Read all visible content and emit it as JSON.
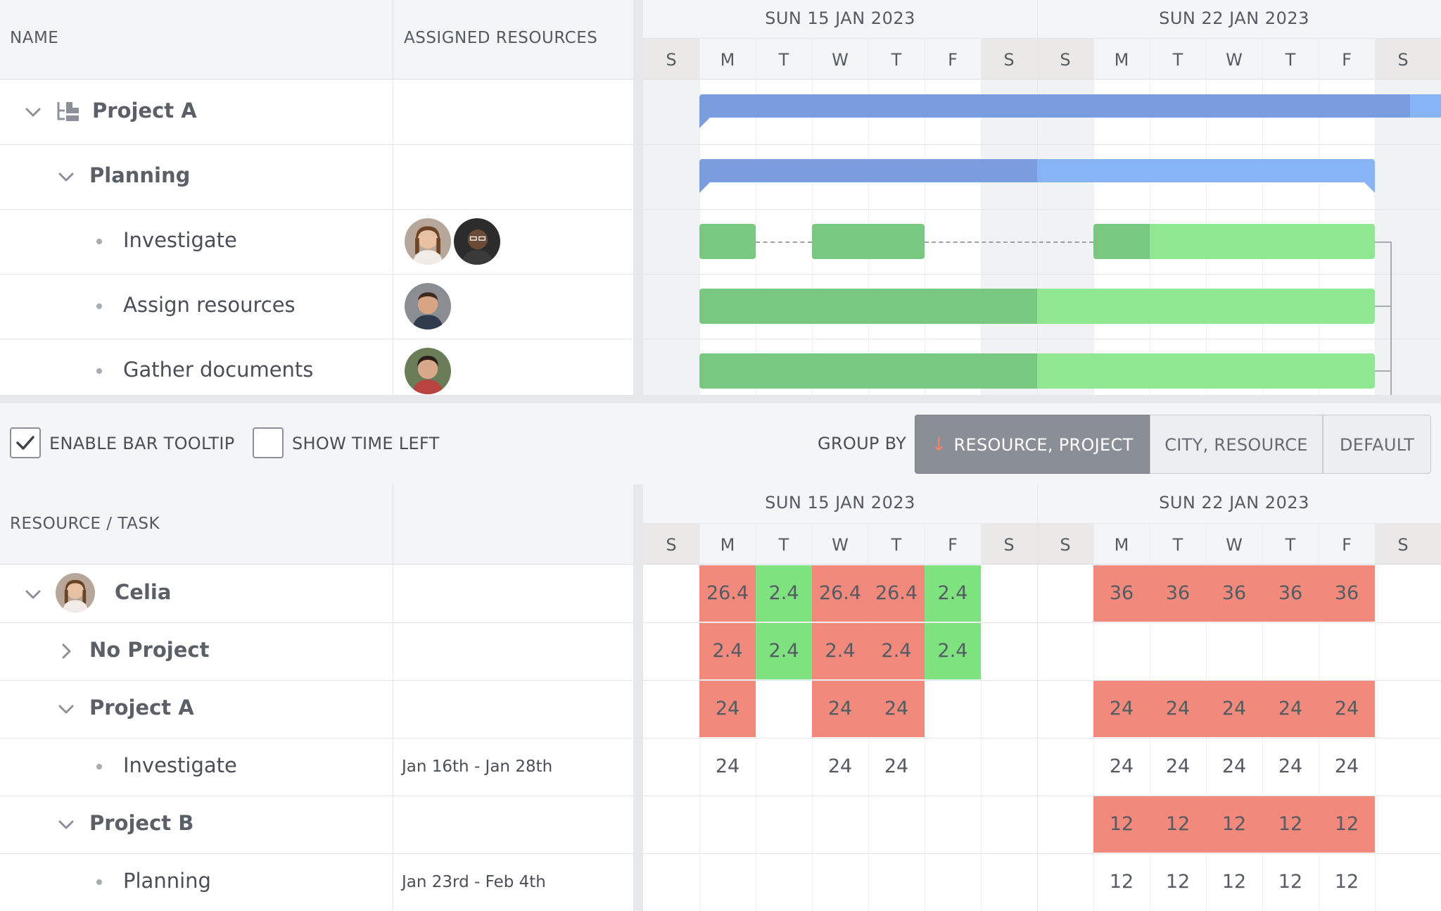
{
  "top_grid": {
    "headers": {
      "name": "NAME",
      "assigned": "ASSIGNED RESOURCES"
    },
    "weeks": [
      "SUN 15 JAN 2023",
      "SUN 22 JAN 2023"
    ],
    "days": [
      "S",
      "M",
      "T",
      "W",
      "T",
      "F",
      "S",
      "S",
      "M",
      "T",
      "W",
      "T",
      "F",
      "S"
    ],
    "rows": [
      {
        "label": "Project A"
      },
      {
        "label": "Planning"
      },
      {
        "label": "Investigate"
      },
      {
        "label": "Assign resources"
      },
      {
        "label": "Gather documents"
      }
    ]
  },
  "toolbar": {
    "enable_tooltip": "ENABLE BAR TOOLTIP",
    "show_time_left": "SHOW TIME LEFT",
    "group_by": "GROUP BY",
    "btn_resource_project": "RESOURCE, PROJECT",
    "btn_city_resource": "CITY, RESOURCE",
    "btn_default": "DEFAULT"
  },
  "bottom_grid": {
    "headers": {
      "resource_task": "RESOURCE / TASK"
    },
    "weeks": [
      "SUN 15 JAN 2023",
      "SUN 22 JAN 2023"
    ],
    "days": [
      "S",
      "M",
      "T",
      "W",
      "T",
      "F",
      "S",
      "S",
      "M",
      "T",
      "W",
      "T",
      "F",
      "S"
    ],
    "rows": [
      {
        "label": "Celia",
        "dates": "",
        "cells": [
          "",
          "26.4",
          "2.4",
          "26.4",
          "26.4",
          "2.4",
          "",
          "",
          "36",
          "36",
          "36",
          "36",
          "36",
          ""
        ],
        "styles": [
          "",
          "red",
          "green",
          "red",
          "red",
          "green",
          "",
          "",
          "red",
          "red",
          "red",
          "red",
          "red",
          ""
        ]
      },
      {
        "label": "No Project",
        "dates": "",
        "cells": [
          "",
          "2.4",
          "2.4",
          "2.4",
          "2.4",
          "2.4",
          "",
          "",
          "",
          "",
          "",
          "",
          "",
          ""
        ],
        "styles": [
          "",
          "red",
          "green",
          "red",
          "red",
          "green",
          "",
          "",
          "",
          "",
          "",
          "",
          "",
          ""
        ]
      },
      {
        "label": "Project A",
        "dates": "",
        "cells": [
          "",
          "24",
          "",
          "24",
          "24",
          "",
          "",
          "",
          "24",
          "24",
          "24",
          "24",
          "24",
          ""
        ],
        "styles": [
          "",
          "red",
          "",
          "red",
          "red",
          "",
          "",
          "",
          "red",
          "red",
          "red",
          "red",
          "red",
          ""
        ]
      },
      {
        "label": "Investigate",
        "dates": "Jan 16th - Jan 28th",
        "cells": [
          "",
          "24",
          "",
          "24",
          "24",
          "",
          "",
          "",
          "24",
          "24",
          "24",
          "24",
          "24",
          ""
        ],
        "styles": [
          "",
          "plain",
          "",
          "plain",
          "plain",
          "",
          "",
          "",
          "plain",
          "plain",
          "plain",
          "plain",
          "plain",
          ""
        ]
      },
      {
        "label": "Project B",
        "dates": "",
        "cells": [
          "",
          "",
          "",
          "",
          "",
          "",
          "",
          "",
          "12",
          "12",
          "12",
          "12",
          "12",
          ""
        ],
        "styles": [
          "",
          "",
          "",
          "",
          "",
          "",
          "",
          "",
          "red",
          "red",
          "red",
          "red",
          "red",
          ""
        ]
      },
      {
        "label": "Planning",
        "dates": "Jan 23rd - Feb 4th",
        "cells": [
          "",
          "",
          "",
          "",
          "",
          "",
          "",
          "",
          "12",
          "12",
          "12",
          "12",
          "12",
          ""
        ],
        "styles": [
          "",
          "",
          "",
          "",
          "",
          "",
          "",
          "",
          "plain",
          "plain",
          "plain",
          "plain",
          "plain",
          ""
        ]
      }
    ]
  },
  "colors": {
    "bar_blue_done": "#7a9ddf",
    "bar_blue_todo": "#86b4f7",
    "bar_green_done": "#78c97f",
    "bar_green_todo": "#90e893",
    "cell_over": "#f18a7c",
    "cell_ok": "#7ee37f"
  },
  "icons": {
    "checked": "check-icon",
    "expand": "chevron-down-icon",
    "collapsed": "chevron-right-icon",
    "sort": "arrow-down-icon",
    "project": "project-tree-icon"
  }
}
